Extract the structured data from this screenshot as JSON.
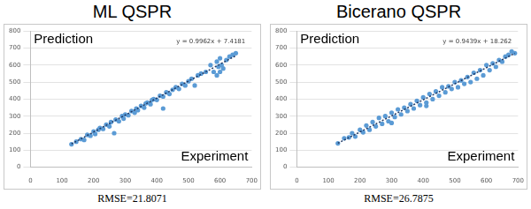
{
  "chart_data": [
    {
      "type": "scatter",
      "title": "ML QSPR",
      "caption": "RMSE=21.8071",
      "annotations": [
        "Prediction",
        "Experiment"
      ],
      "color": "#5b9bd5",
      "marker": "circle",
      "grid": true,
      "xlim": [
        0,
        700
      ],
      "xticks": [
        0,
        100,
        200,
        300,
        400,
        500,
        600,
        700
      ],
      "ylim": [
        0,
        800
      ],
      "yticks": [
        0,
        100,
        200,
        300,
        400,
        500,
        600,
        700,
        800
      ],
      "trendline": {
        "slope": 0.9962,
        "intercept": 7.4181,
        "label": "y = 0.9962x + 7.4181",
        "color": "#1f3864",
        "line_style": "dotted"
      },
      "x": [
        130,
        145,
        160,
        170,
        180,
        190,
        200,
        205,
        215,
        220,
        230,
        240,
        250,
        255,
        265,
        270,
        280,
        290,
        295,
        300,
        310,
        320,
        330,
        335,
        340,
        350,
        360,
        365,
        370,
        380,
        385,
        390,
        400,
        410,
        420,
        430,
        440,
        450,
        460,
        470,
        480,
        490,
        500,
        510,
        520,
        530,
        540,
        555,
        570,
        580,
        590,
        595,
        600,
        605,
        610,
        620,
        630,
        640,
        650,
        600,
        590,
        420
      ],
      "values": [
        135,
        150,
        165,
        160,
        190,
        185,
        210,
        195,
        220,
        230,
        225,
        250,
        240,
        265,
        200,
        280,
        270,
        300,
        285,
        310,
        305,
        330,
        320,
        345,
        335,
        360,
        350,
        375,
        380,
        370,
        395,
        400,
        395,
        420,
        415,
        440,
        430,
        455,
        470,
        460,
        490,
        480,
        505,
        520,
        480,
        540,
        550,
        560,
        600,
        560,
        620,
        590,
        640,
        600,
        580,
        630,
        650,
        660,
        670,
        560,
        540,
        345
      ]
    },
    {
      "type": "scatter",
      "title": "Bicerano QSPR",
      "caption": "RMSE=26.7875",
      "annotations": [
        "Prediction",
        "Experiment"
      ],
      "color": "#5b9bd5",
      "marker": "circle",
      "grid": true,
      "xlim": [
        0,
        700
      ],
      "xticks": [
        0,
        100,
        200,
        300,
        400,
        500,
        600,
        700
      ],
      "ylim": [
        0,
        800
      ],
      "yticks": [
        0,
        100,
        200,
        300,
        400,
        500,
        600,
        700,
        800
      ],
      "trendline": {
        "slope": 0.9439,
        "intercept": 18.262,
        "label": "y = 0.9439x + 18.262",
        "color": "#1f3864",
        "line_style": "dotted"
      },
      "x": [
        130,
        150,
        165,
        175,
        185,
        200,
        210,
        220,
        230,
        240,
        250,
        260,
        270,
        280,
        290,
        300,
        310,
        320,
        330,
        340,
        350,
        360,
        370,
        380,
        390,
        400,
        410,
        420,
        430,
        440,
        450,
        460,
        470,
        480,
        490,
        500,
        510,
        520,
        530,
        540,
        550,
        560,
        570,
        580,
        590,
        600,
        610,
        620,
        630,
        640,
        650,
        660,
        670,
        680,
        690,
        300,
        410
      ],
      "values": [
        140,
        170,
        175,
        200,
        180,
        220,
        205,
        245,
        220,
        265,
        240,
        290,
        255,
        300,
        270,
        320,
        295,
        340,
        310,
        350,
        330,
        370,
        345,
        390,
        365,
        410,
        380,
        430,
        400,
        445,
        420,
        470,
        440,
        475,
        460,
        500,
        470,
        510,
        490,
        530,
        500,
        555,
        520,
        570,
        540,
        600,
        570,
        610,
        590,
        630,
        620,
        650,
        660,
        680,
        670,
        260,
        360
      ]
    }
  ]
}
